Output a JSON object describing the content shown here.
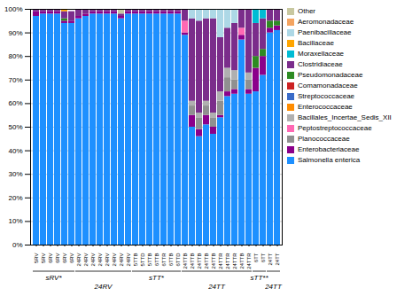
{
  "chart_data": {
    "type": "bar",
    "stacked": true,
    "categories": [
      "5RV",
      "5RV",
      "6RV",
      "6RV",
      "6RV",
      "6RV",
      "24RV",
      "24RV",
      "24RV",
      "24RV",
      "24RV",
      "24RV",
      "24RV",
      "24RV",
      "5TTB",
      "5TTD",
      "5TTB",
      "6TTB",
      "6TTR",
      "6TTB",
      "6TTD",
      "24TTB",
      "24TTB",
      "24TTB",
      "24TTB",
      "24TTB",
      "24TTR",
      "24TTR",
      "24TTR",
      "24TTB",
      "24TTR",
      "6TT",
      "6TT",
      "24TT",
      "24TT"
    ],
    "groups": [
      {
        "label": "sRV*",
        "first": 0,
        "last": 5
      },
      {
        "label": "24RV",
        "first": 6,
        "last": 13
      },
      {
        "label": "sTT*",
        "first": 14,
        "last": 20
      },
      {
        "label": "24TT",
        "first": 21,
        "last": 30
      },
      {
        "label": "sTT**",
        "first": 31,
        "last": 32
      },
      {
        "label": "24TT",
        "first": 33,
        "last": 34
      }
    ],
    "series": [
      {
        "name": "Salmonella enterica",
        "color": "#1e90ff",
        "values": [
          0.97,
          0.98,
          0.98,
          0.98,
          0.94,
          0.94,
          0.96,
          0.97,
          0.98,
          0.98,
          0.98,
          0.98,
          0.96,
          0.98,
          0.98,
          0.98,
          0.98,
          0.98,
          0.98,
          0.98,
          0.98,
          0.89,
          0.5,
          0.46,
          0.51,
          0.47,
          0.54,
          0.63,
          0.64,
          0.87,
          0.64,
          0.65,
          0.72,
          0.9,
          0.91
        ]
      },
      {
        "name": "Enterobacteriaceae",
        "color": "#8b008b",
        "values": [
          0.02,
          0.01,
          0.01,
          0.01,
          0.01,
          0.01,
          0.01,
          0.01,
          0.01,
          0.01,
          0.01,
          0.01,
          0.01,
          0.01,
          0.01,
          0.01,
          0.01,
          0.01,
          0.01,
          0.01,
          0.01,
          0.01,
          0.05,
          0.03,
          0.04,
          0.03,
          0.01,
          0.02,
          0.02,
          0.02,
          0.02,
          0.1,
          0.08,
          0.02,
          0.02
        ]
      },
      {
        "name": "Planococcaceae",
        "color": "#909090",
        "values": [
          0,
          0,
          0,
          0,
          0,
          0,
          0,
          0,
          0,
          0,
          0,
          0,
          0,
          0,
          0,
          0,
          0,
          0,
          0,
          0,
          0,
          0,
          0.04,
          0.05,
          0.04,
          0.04,
          0.06,
          0.06,
          0.04,
          0,
          0.04,
          0,
          0,
          0,
          0
        ]
      },
      {
        "name": "Peptostreptococcaceae",
        "color": "#ff69b4",
        "values": [
          0,
          0,
          0,
          0,
          0,
          0,
          0,
          0,
          0,
          0,
          0,
          0,
          0,
          0,
          0,
          0,
          0,
          0,
          0,
          0,
          0,
          0.05,
          0,
          0,
          0,
          0,
          0,
          0,
          0,
          0.03,
          0,
          0,
          0,
          0,
          0
        ]
      },
      {
        "name": "Bacillales_Incertae_Sedis_XII",
        "color": "#b0b0b0",
        "values": [
          0,
          0,
          0,
          0,
          0,
          0,
          0,
          0,
          0,
          0,
          0,
          0,
          0,
          0,
          0,
          0,
          0,
          0,
          0,
          0,
          0,
          0,
          0.02,
          0.02,
          0.02,
          0.02,
          0.04,
          0.04,
          0.04,
          0,
          0.03,
          0,
          0,
          0,
          0
        ]
      },
      {
        "name": "Enterococcaceae",
        "color": "#ff8c00",
        "values": [
          0,
          0,
          0,
          0,
          0,
          0,
          0,
          0,
          0,
          0,
          0,
          0,
          0,
          0,
          0,
          0,
          0,
          0,
          0,
          0,
          0,
          0,
          0,
          0,
          0,
          0,
          0,
          0,
          0,
          0,
          0,
          0,
          0,
          0,
          0
        ]
      },
      {
        "name": "Streptococcaceae",
        "color": "#3a6bc8",
        "values": [
          0,
          0,
          0,
          0,
          0,
          0,
          0,
          0,
          0,
          0,
          0,
          0,
          0,
          0,
          0,
          0,
          0,
          0,
          0,
          0,
          0,
          0,
          0,
          0,
          0,
          0,
          0,
          0,
          0,
          0,
          0,
          0,
          0,
          0,
          0
        ]
      },
      {
        "name": "Comamonadaceae",
        "color": "#cc2222",
        "values": [
          0,
          0,
          0,
          0,
          0,
          0,
          0,
          0,
          0,
          0,
          0,
          0,
          0,
          0,
          0,
          0,
          0,
          0,
          0,
          0,
          0,
          0,
          0,
          0,
          0,
          0,
          0,
          0,
          0,
          0,
          0,
          0,
          0,
          0,
          0
        ]
      },
      {
        "name": "Pseudomonadaceae",
        "color": "#2e8b22",
        "values": [
          0,
          0,
          0,
          0,
          0.01,
          0,
          0,
          0,
          0,
          0,
          0,
          0,
          0,
          0,
          0,
          0,
          0,
          0,
          0,
          0,
          0,
          0,
          0,
          0,
          0,
          0,
          0,
          0,
          0,
          0,
          0,
          0.05,
          0.03,
          0.03,
          0.02
        ]
      },
      {
        "name": "Clostridiaceae",
        "color": "#7b2d8b",
        "values": [
          0.01,
          0.01,
          0.01,
          0.01,
          0.03,
          0.04,
          0.03,
          0.02,
          0.01,
          0.01,
          0.01,
          0.01,
          0.01,
          0.01,
          0.01,
          0.01,
          0.01,
          0.01,
          0.01,
          0.01,
          0.01,
          0.05,
          0.35,
          0.39,
          0.35,
          0.4,
          0.23,
          0.17,
          0.2,
          0.08,
          0.27,
          0.14,
          0.13,
          0.05,
          0.05
        ]
      },
      {
        "name": "Moraxellaceae",
        "color": "#00bcd4",
        "values": [
          0,
          0,
          0,
          0,
          0,
          0,
          0,
          0,
          0,
          0,
          0,
          0,
          0,
          0,
          0,
          0,
          0,
          0,
          0,
          0,
          0,
          0,
          0,
          0,
          0,
          0,
          0,
          0,
          0,
          0,
          0,
          0.06,
          0.04,
          0,
          0
        ]
      },
      {
        "name": "Bacillaceae",
        "color": "#ffa500",
        "values": [
          0,
          0,
          0,
          0,
          0.01,
          0,
          0,
          0,
          0,
          0,
          0,
          0,
          0,
          0,
          0,
          0,
          0,
          0,
          0,
          0,
          0,
          0,
          0,
          0,
          0,
          0,
          0,
          0,
          0,
          0,
          0,
          0,
          0,
          0,
          0
        ]
      },
      {
        "name": "Paenibacillaceae",
        "color": "#add8e6",
        "values": [
          0,
          0,
          0,
          0,
          0,
          0,
          0,
          0,
          0,
          0,
          0,
          0,
          0,
          0,
          0,
          0,
          0,
          0,
          0,
          0,
          0,
          0,
          0.04,
          0.05,
          0.04,
          0.04,
          0.12,
          0.08,
          0.06,
          0,
          0,
          0,
          0,
          0,
          0
        ]
      },
      {
        "name": "Aeromonadaceae",
        "color": "#f4a460",
        "values": [
          0,
          0,
          0,
          0,
          0,
          0,
          0,
          0,
          0,
          0,
          0,
          0,
          0,
          0,
          0,
          0,
          0,
          0,
          0,
          0,
          0,
          0,
          0,
          0,
          0,
          0,
          0,
          0,
          0,
          0,
          0,
          0,
          0,
          0,
          0
        ]
      },
      {
        "name": "Other",
        "color": "#c8c8a0",
        "values": [
          0,
          0,
          0,
          0,
          0,
          0,
          0,
          0,
          0,
          0,
          0,
          0,
          0.02,
          0,
          0,
          0,
          0,
          0,
          0,
          0,
          0,
          0,
          0,
          0,
          0,
          0,
          0,
          0,
          0,
          0,
          0,
          0,
          0,
          0,
          0
        ]
      }
    ],
    "ylim": [
      0,
      1.0
    ],
    "yticks": [
      {
        "value": 0,
        "label": "0%"
      },
      {
        "value": 0.1,
        "label": "10%"
      },
      {
        "value": 0.2,
        "label": "20%"
      },
      {
        "value": 0.3,
        "label": "30%"
      },
      {
        "value": 0.4,
        "label": "40%"
      },
      {
        "value": 0.5,
        "label": "50%"
      },
      {
        "value": 0.6,
        "label": "60%"
      },
      {
        "value": 0.7,
        "label": "70%"
      },
      {
        "value": 0.8,
        "label": "80%"
      },
      {
        "value": 0.9,
        "label": "90%"
      },
      {
        "value": 1.0,
        "label": "100%"
      }
    ],
    "grid": true,
    "legend": "right"
  }
}
